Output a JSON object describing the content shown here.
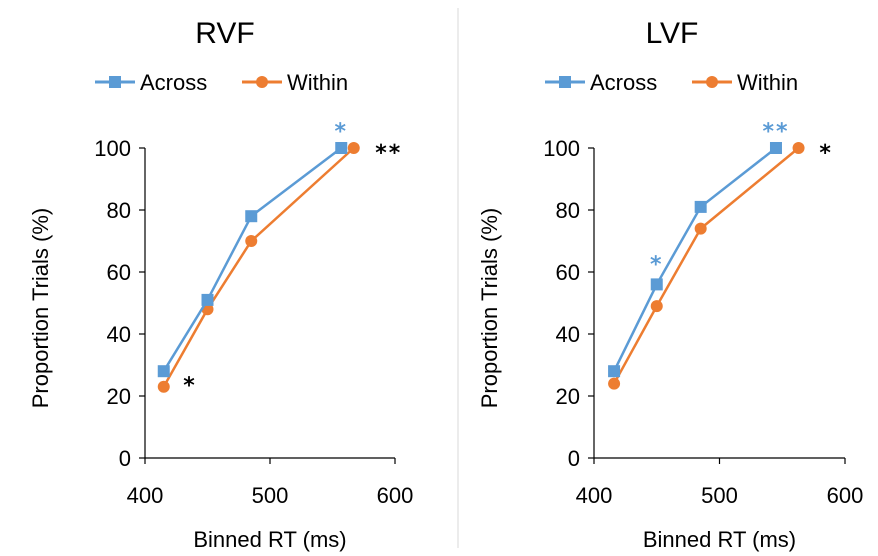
{
  "colors": {
    "across": "#5b9bd5",
    "within": "#ed7d31",
    "axis": "#000000",
    "divider": "#d9d9d9",
    "black_star": "#000000"
  },
  "chart_data": [
    {
      "type": "line",
      "title": "RVF",
      "xlabel": "Binned RT (ms)",
      "ylabel": "Proportion Trials (%)",
      "xlim": [
        400,
        600
      ],
      "ylim": [
        0,
        100
      ],
      "xticks": [
        "400",
        "500",
        "600"
      ],
      "yticks": [
        "0",
        "20",
        "40",
        "60",
        "80",
        "100"
      ],
      "legend": "top",
      "series": [
        {
          "name": "Across",
          "marker": "square",
          "x": [
            415,
            450,
            485,
            557
          ],
          "y": [
            28,
            51,
            78,
            100
          ]
        },
        {
          "name": "Within",
          "marker": "circle",
          "x": [
            415,
            450,
            485,
            567
          ],
          "y": [
            23,
            48,
            70,
            100
          ]
        }
      ],
      "annotations": [
        {
          "text": "*",
          "x": 557,
          "y": 107,
          "color": "across"
        },
        {
          "text": "**",
          "x": 595,
          "y": 100,
          "color": "black_star"
        },
        {
          "text": "*",
          "x": 436,
          "y": 25,
          "color": "black_star"
        }
      ]
    },
    {
      "type": "line",
      "title": "LVF",
      "xlabel": "Binned RT (ms)",
      "ylabel": "Proportion Trials (%)",
      "xlim": [
        400,
        600
      ],
      "ylim": [
        0,
        100
      ],
      "xticks": [
        "400",
        "500",
        "600"
      ],
      "yticks": [
        "0",
        "20",
        "40",
        "60",
        "80",
        "100"
      ],
      "legend": "top",
      "series": [
        {
          "name": "Across",
          "marker": "square",
          "x": [
            416,
            450,
            485,
            545
          ],
          "y": [
            28,
            56,
            81,
            100
          ]
        },
        {
          "name": "Within",
          "marker": "circle",
          "x": [
            416,
            450,
            485,
            563
          ],
          "y": [
            24,
            49,
            74,
            100
          ]
        }
      ],
      "annotations": [
        {
          "text": "*",
          "x": 450,
          "y": 64,
          "color": "across"
        },
        {
          "text": "**",
          "x": 545,
          "y": 107,
          "color": "across"
        },
        {
          "text": "*",
          "x": 585,
          "y": 100,
          "color": "black_star"
        }
      ]
    }
  ]
}
